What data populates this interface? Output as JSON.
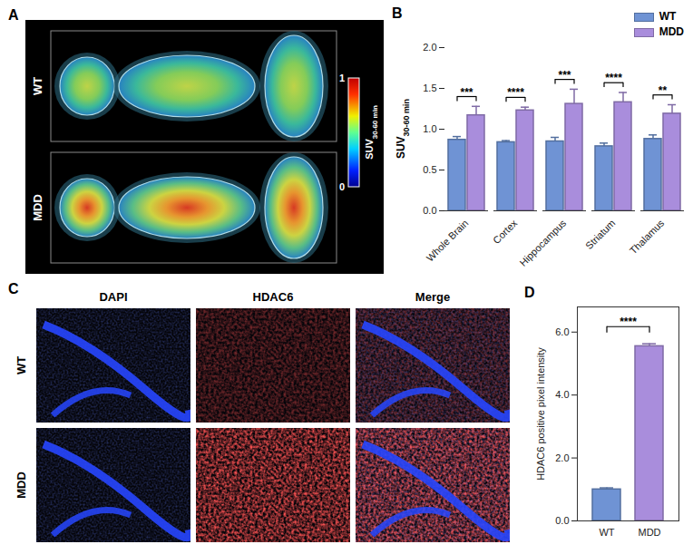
{
  "panels": {
    "A": {
      "letter": "A",
      "rows": [
        "WT",
        "MDD"
      ],
      "colorbar": {
        "label": "SUV",
        "label_subscript": "30-60 min",
        "range": [
          0,
          1
        ],
        "ticks": [
          0,
          1
        ]
      }
    },
    "C": {
      "letter": "C",
      "columns": [
        "DAPI",
        "HDAC6",
        "Merge"
      ],
      "rows": [
        "WT",
        "MDD"
      ]
    }
  },
  "chart_data": [
    {
      "panel": "B",
      "type": "bar",
      "categories": [
        "Whole Brain",
        "Cortex",
        "Hippocampus",
        "Striatum",
        "Thalamus"
      ],
      "y_label": "SUV",
      "y_label_subscript": "30-60 min",
      "ylim": [
        0,
        2
      ],
      "yticks": [
        {
          "value": 0,
          "label": "0.0"
        },
        {
          "value": 0.5,
          "label": "0.5"
        },
        {
          "value": 1,
          "label": "1.0"
        },
        {
          "value": 1.5,
          "label": "1.5"
        },
        {
          "value": 2,
          "label": "2.0"
        }
      ],
      "series": [
        {
          "name": "WT",
          "color": "#6f93d4",
          "values": [
            0.87,
            0.84,
            0.85,
            0.79,
            0.88
          ],
          "errors": [
            0.04,
            0.02,
            0.05,
            0.04,
            0.05
          ]
        },
        {
          "name": "MDD",
          "color": "#a98ddc",
          "values": [
            1.17,
            1.23,
            1.31,
            1.33,
            1.19
          ],
          "errors": [
            0.11,
            0.04,
            0.18,
            0.12,
            0.11
          ]
        }
      ],
      "annotations": [
        "***",
        "****",
        "***",
        "****",
        "**"
      ],
      "legend": "top-right"
    },
    {
      "panel": "D",
      "type": "bar",
      "categories": [
        "WT",
        "MDD"
      ],
      "values": [
        1.0,
        5.55
      ],
      "errors": [
        0.05,
        0.08
      ],
      "colors": [
        "#6f93d4",
        "#a98ddc"
      ],
      "y_label": "HDAC6 positive pixel intensity",
      "ylim": [
        0,
        6.8
      ],
      "yticks": [
        0,
        2,
        4,
        6
      ],
      "annotations": [
        "****"
      ]
    }
  ]
}
